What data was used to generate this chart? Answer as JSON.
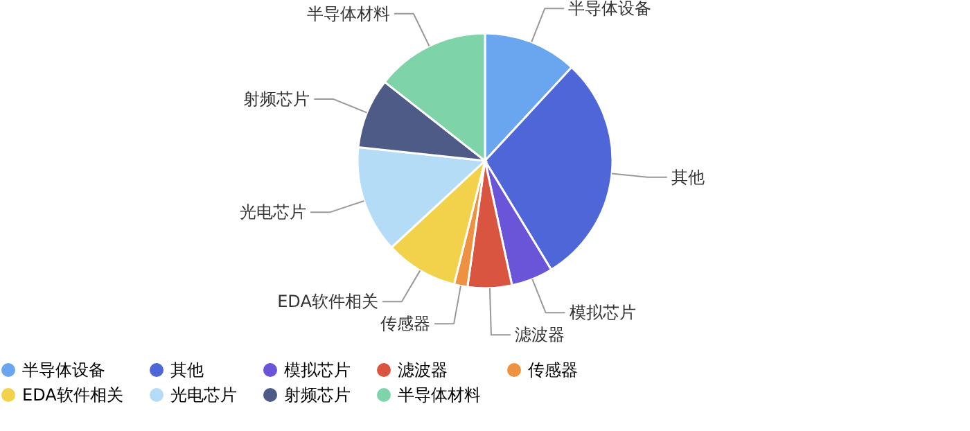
{
  "chart_data": {
    "type": "pie",
    "categories": [
      "半导体设备",
      "其他",
      "模拟芯片",
      "滤波器",
      "传感器",
      "EDA软件相关",
      "光电芯片",
      "射频芯片",
      "半导体材料"
    ],
    "values": [
      11.9,
      29.4,
      5.3,
      5.6,
      1.7,
      9.2,
      13.6,
      8.9,
      14.4
    ],
    "colors": [
      "#6aa6ef",
      "#4f66d8",
      "#6a54d8",
      "#d9553f",
      "#ee9140",
      "#f2d24a",
      "#b5dcf7",
      "#4d5b86",
      "#7fd3a8"
    ],
    "legend": "bottom"
  }
}
